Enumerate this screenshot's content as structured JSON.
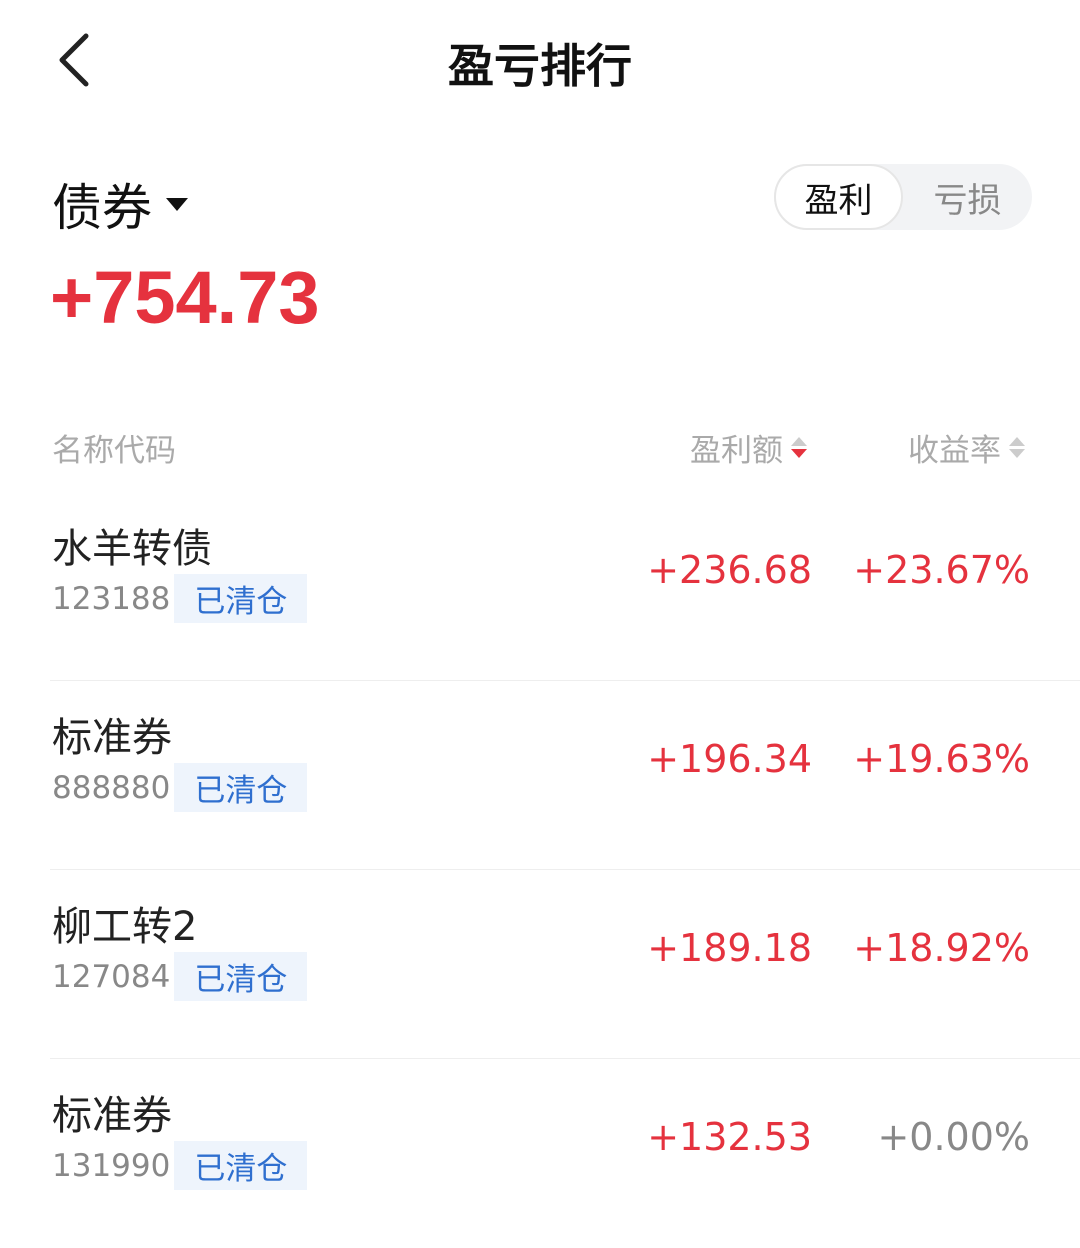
{
  "header": {
    "title": "盈亏排行",
    "back_icon": "chevron-left-icon"
  },
  "summary": {
    "category": "债券",
    "total": "+754.73"
  },
  "toggle": {
    "profit": "盈利",
    "loss": "亏损",
    "selected": "盈利"
  },
  "columns": {
    "name": "名称代码",
    "amount": "盈利额",
    "rate": "收益率",
    "sorted_by": "盈利额",
    "sort_direction": "descending"
  },
  "colors": {
    "profit": "#e5323e",
    "tag": "#2f6fcf"
  },
  "rows": [
    {
      "name": "水羊转债",
      "code": "123188",
      "tag": "已清仓",
      "amount": "+236.68",
      "rate": "+23.67%"
    },
    {
      "name": "标准券",
      "code": "888880",
      "tag": "已清仓",
      "amount": "+196.34",
      "rate": "+19.63%"
    },
    {
      "name": "柳工转2",
      "code": "127084",
      "tag": "已清仓",
      "amount": "+189.18",
      "rate": "+18.92%"
    },
    {
      "name": "标准券",
      "code": "131990",
      "tag": "已清仓",
      "amount": "+132.53",
      "rate": "+0.00%"
    }
  ]
}
